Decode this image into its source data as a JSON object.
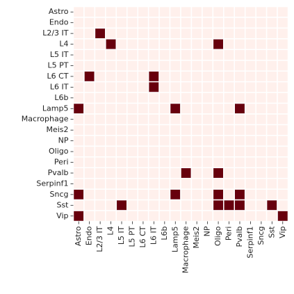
{
  "chart_data": {
    "type": "heatmap",
    "x_categories": [
      "Astro",
      "Endo",
      "L2/3 IT",
      "L4",
      "L5 IT",
      "L5 PT",
      "L6 CT",
      "L6 IT",
      "L6b",
      "Lamp5",
      "Macrophage",
      "Meis2",
      "NP",
      "Oligo",
      "Peri",
      "Pvalb",
      "Serpinf1",
      "Sncg",
      "Sst",
      "Vip"
    ],
    "y_categories": [
      "Astro",
      "Endo",
      "L2/3 IT",
      "L4",
      "L5 IT",
      "L5 PT",
      "L6 CT",
      "L6 IT",
      "L6b",
      "Lamp5",
      "Macrophage",
      "Meis2",
      "NP",
      "Oligo",
      "Peri",
      "Pvalb",
      "Serpinf1",
      "Sncg",
      "Sst",
      "Vip"
    ],
    "values": [
      [
        0,
        0,
        0,
        0,
        0,
        0,
        0,
        0,
        0,
        0,
        0,
        0,
        0,
        0,
        0,
        0,
        0,
        0,
        0,
        0
      ],
      [
        0,
        0,
        0,
        0,
        0,
        0,
        0,
        0,
        0,
        0,
        0,
        0,
        0,
        0,
        0,
        0,
        0,
        0,
        0,
        0
      ],
      [
        0,
        0,
        1,
        0,
        0,
        0,
        0,
        0,
        0,
        0,
        0,
        0,
        0,
        0,
        0,
        0,
        0,
        0,
        0,
        0
      ],
      [
        0,
        0,
        0,
        1,
        0,
        0,
        0,
        0,
        0,
        0,
        0,
        0,
        0,
        1,
        0,
        0,
        0,
        0,
        0,
        0
      ],
      [
        0,
        0,
        0,
        0,
        0,
        0,
        0,
        0,
        0,
        0,
        0,
        0,
        0,
        0,
        0,
        0,
        0,
        0,
        0,
        0
      ],
      [
        0,
        0,
        0,
        0,
        0,
        0,
        0,
        0,
        0,
        0,
        0,
        0,
        0,
        0,
        0,
        0,
        0,
        0,
        0,
        0
      ],
      [
        0,
        1,
        0,
        0,
        0,
        0,
        0,
        1,
        0,
        0,
        0,
        0,
        0,
        0,
        0,
        0,
        0,
        0,
        0,
        0
      ],
      [
        0,
        0,
        0,
        0,
        0,
        0,
        0,
        1,
        0,
        0,
        0,
        0,
        0,
        0,
        0,
        0,
        0,
        0,
        0,
        0
      ],
      [
        0,
        0,
        0,
        0,
        0,
        0,
        0,
        0,
        0,
        0,
        0,
        0,
        0,
        0,
        0,
        0,
        0,
        0,
        0,
        0
      ],
      [
        1,
        0,
        0,
        0,
        0,
        0,
        0,
        0,
        0,
        1,
        0,
        0,
        0,
        0,
        0,
        1,
        0,
        0,
        0,
        0
      ],
      [
        0,
        0,
        0,
        0,
        0,
        0,
        0,
        0,
        0,
        0,
        0,
        0,
        0,
        0,
        0,
        0,
        0,
        0,
        0,
        0
      ],
      [
        0,
        0,
        0,
        0,
        0,
        0,
        0,
        0,
        0,
        0,
        0,
        0,
        0,
        0,
        0,
        0,
        0,
        0,
        0,
        0
      ],
      [
        0,
        0,
        0,
        0,
        0,
        0,
        0,
        0,
        0,
        0,
        0,
        0,
        0,
        0,
        0,
        0,
        0,
        0,
        0,
        0
      ],
      [
        0,
        0,
        0,
        0,
        0,
        0,
        0,
        0,
        0,
        0,
        0,
        0,
        0,
        0,
        0,
        0,
        0,
        0,
        0,
        0
      ],
      [
        0,
        0,
        0,
        0,
        0,
        0,
        0,
        0,
        0,
        0,
        0,
        0,
        0,
        0,
        0,
        0,
        0,
        0,
        0,
        0
      ],
      [
        0,
        0,
        0,
        0,
        0,
        0,
        0,
        0,
        0,
        0,
        1,
        0,
        0,
        1,
        0,
        0,
        0,
        0,
        0,
        0
      ],
      [
        0,
        0,
        0,
        0,
        0,
        0,
        0,
        0,
        0,
        0,
        0,
        0,
        0,
        0,
        0,
        0,
        0,
        0,
        0,
        0
      ],
      [
        1,
        0,
        0,
        0,
        0,
        0,
        0,
        0,
        0,
        1,
        0,
        0,
        0,
        1,
        0,
        1,
        0,
        0,
        0,
        0
      ],
      [
        0,
        0,
        0,
        0,
        1,
        0,
        0,
        0,
        0,
        0,
        0,
        0,
        0,
        1,
        1,
        1,
        0,
        0,
        1,
        0
      ],
      [
        1,
        0,
        0,
        0,
        0,
        0,
        0,
        0,
        0,
        0,
        0,
        0,
        0,
        0,
        0,
        0,
        0,
        0,
        0,
        1
      ]
    ],
    "color_low": "#fff0ec",
    "color_high": "#67000d"
  }
}
